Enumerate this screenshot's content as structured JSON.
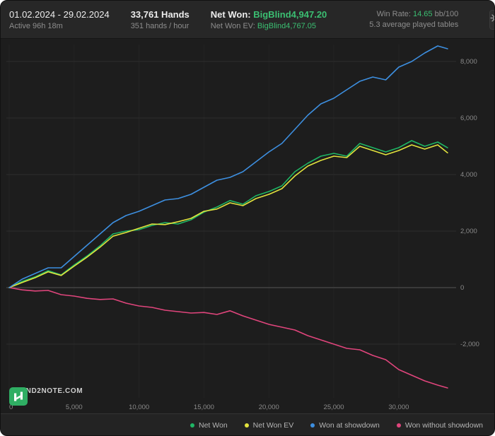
{
  "header": {
    "date_range": "01.02.2024 - 29.02.2024",
    "active_time": "Active 96h 18m",
    "hands": "33,761 Hands",
    "hands_per_hour": "351 hands / hour",
    "net_won_label": "Net Won:",
    "net_won_value": "BigBlind4,947.20",
    "net_won_ev_label": "Net Won  EV:",
    "net_won_ev_value": "BigBlind4,767.05",
    "win_rate_label": "Win Rate:",
    "win_rate_value": "14.65",
    "win_rate_unit": "bb/100",
    "avg_tables": "5.3 average played tables"
  },
  "footer": {
    "logo_text": "HAND2NOTE.COM"
  },
  "colors": {
    "green": "#3bbf72",
    "net_won_line": "#1fb665",
    "net_won_ev_line": "#e2e33d",
    "showdown_line": "#3d8fe0",
    "no_showdown_line": "#e0457c",
    "logo_green": "#2fae63",
    "grid": "#2d2d2d",
    "zero_line": "#555555",
    "tick_text": "#8a8a8a"
  },
  "chart_data": {
    "type": "line",
    "title": "",
    "xlabel": "",
    "ylabel": "",
    "grid": true,
    "legend_position": "bottom-right",
    "xlim": [
      0,
      34200
    ],
    "ylim": [
      -3900,
      8600
    ],
    "x_ticks": {
      "values": [
        0,
        5000,
        10000,
        15000,
        20000,
        25000,
        30000
      ],
      "labels": [
        "0",
        "5,000",
        "10,000",
        "15,000",
        "20,000",
        "25,000",
        "30,000"
      ]
    },
    "y_ticks": {
      "values": [
        8000,
        6000,
        4000,
        2000,
        0,
        -2000
      ],
      "labels": [
        "8,000",
        "6,000",
        "4,000",
        "2,000",
        "0",
        "-2,000"
      ]
    },
    "x": [
      0,
      1000,
      2000,
      3000,
      4000,
      5000,
      6000,
      7000,
      8000,
      9000,
      10000,
      11000,
      12000,
      13000,
      14000,
      15000,
      16000,
      17000,
      18000,
      19000,
      20000,
      21000,
      22000,
      23000,
      24000,
      25000,
      26000,
      27000,
      28000,
      29000,
      30000,
      31000,
      32000,
      33000,
      33761
    ],
    "series": [
      {
        "name": "Net Won",
        "color": "#1fb665",
        "values": [
          0,
          220,
          380,
          600,
          450,
          800,
          1120,
          1480,
          1900,
          2000,
          2050,
          2200,
          2300,
          2250,
          2400,
          2670,
          2850,
          3080,
          2950,
          3250,
          3400,
          3600,
          4100,
          4400,
          4650,
          4750,
          4650,
          5100,
          4950,
          4800,
          4950,
          5200,
          5000,
          5150,
          4947
        ]
      },
      {
        "name": "Net Won  EV",
        "color": "#e2e33d",
        "values": [
          0,
          180,
          350,
          560,
          430,
          760,
          1080,
          1430,
          1820,
          1950,
          2100,
          2250,
          2230,
          2330,
          2450,
          2700,
          2780,
          3000,
          2900,
          3150,
          3300,
          3500,
          3950,
          4300,
          4500,
          4650,
          4600,
          5000,
          4850,
          4700,
          4850,
          5050,
          4900,
          5050,
          4767
        ]
      },
      {
        "name": "Won at showdown",
        "color": "#3d8fe0",
        "values": [
          0,
          300,
          500,
          700,
          700,
          1100,
          1500,
          1900,
          2300,
          2550,
          2700,
          2900,
          3100,
          3150,
          3300,
          3550,
          3800,
          3900,
          4100,
          4450,
          4800,
          5100,
          5600,
          6100,
          6500,
          6700,
          7000,
          7300,
          7450,
          7350,
          7800,
          8000,
          8300,
          8550,
          8450
        ]
      },
      {
        "name": "Won without showdown",
        "color": "#e0457c",
        "values": [
          0,
          -80,
          -120,
          -100,
          -250,
          -300,
          -380,
          -420,
          -400,
          -550,
          -650,
          -700,
          -800,
          -850,
          -900,
          -880,
          -950,
          -820,
          -1000,
          -1150,
          -1300,
          -1400,
          -1500,
          -1700,
          -1850,
          -2000,
          -2150,
          -2200,
          -2400,
          -2550,
          -2900,
          -3100,
          -3300,
          -3450,
          -3550
        ]
      }
    ]
  }
}
